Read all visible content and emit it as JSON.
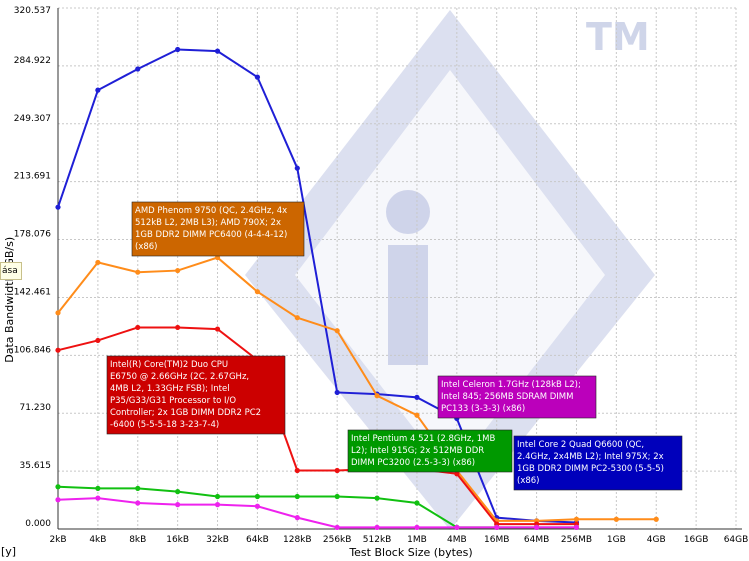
{
  "chart_data": {
    "type": "line",
    "xlabel": "Test Block Size (bytes)",
    "ylabel": "Data Bandwidth (GB/s)",
    "y_unit_marker": "[y]",
    "clipped_label": "ása",
    "watermark": "TM",
    "ylim": [
      0,
      320.537
    ],
    "yticks": [
      "0.000",
      "35.615",
      "71.230",
      "106.846",
      "142.461",
      "178.076",
      "213.691",
      "249.307",
      "284.922",
      "320.537"
    ],
    "categories": [
      "2kB",
      "4kB",
      "8kB",
      "16kB",
      "32kB",
      "64kB",
      "128kB",
      "256kB",
      "512kB",
      "1MB",
      "4MB",
      "16MB",
      "64MB",
      "256MB",
      "1GB",
      "4GB",
      "16GB",
      "64GB"
    ],
    "series": [
      {
        "name": "Intel Core 2 Quad Q6600 (QC, 2.4GHz, 2x4MB L2); Intel 975X; 2x 1GB DDR2 DIMM PC2-5300 (5-5-5) (x86)",
        "color": "#1f1fd6",
        "values": [
          198,
          270,
          283,
          295,
          294,
          278,
          222,
          84,
          83,
          81,
          68,
          7,
          5,
          4,
          null,
          null,
          null,
          null
        ]
      },
      {
        "name": "AMD Phenom 9750 (QC, 2.4GHz, 4x 512kB L2, 2MB L3); AMD 790X; 2x 1GB DDR2 DIMM PC6400 (4-4-4-12) (x86)",
        "color": "#ff8c1a",
        "values": [
          133,
          164,
          158,
          159,
          167,
          146,
          130,
          122,
          82,
          70,
          36,
          5,
          5,
          6,
          6,
          6,
          null,
          null
        ]
      },
      {
        "name": "Intel(R) Core(TM)2 Duo CPU E6750 @ 2.66GHz (2C, 2.67GHz, 4MB L2, 1.33GHz FSB); Intel P35/G33/G31 Processor to I/O Controller; 2x 1GB DIMM DDR2 PC2-6400 (5-5-5-18 3-23-7-4)",
        "color": "#ee1111",
        "values": [
          110,
          116,
          124,
          124,
          123,
          104,
          36,
          36,
          37,
          37,
          34,
          3,
          3,
          3,
          null,
          null,
          null,
          null
        ]
      },
      {
        "name": "Intel Pentium 4 521 (2.8GHz, 1MB L2); Intel 915G; 2x 512MB DDR DIMM PC3200 (2.5-3-3) (x86)",
        "color": "#11c011",
        "values": [
          26,
          25,
          25,
          23,
          20,
          20,
          20,
          20,
          19,
          16,
          1,
          1,
          1,
          1,
          null,
          null,
          null,
          null
        ]
      },
      {
        "name": "Intel Celeron 1.7GHz (128kB L2); Intel 845; 256MB SDRAM DIMM PC133 (3-3-3) (x86)",
        "color": "#ee22ee",
        "values": [
          18,
          19,
          16,
          15,
          15,
          14,
          7,
          1,
          1,
          1,
          1,
          1,
          1,
          1,
          null,
          null,
          null,
          null
        ]
      }
    ],
    "annotations": [
      {
        "series": 1,
        "fill": "#cc6600",
        "lines": [
          "AMD Phenom 9750 (QC, 2.4GHz, 4x",
          "512kB L2, 2MB L3); AMD 790X; 2x",
          "1GB DDR2 DIMM PC6400 (4-4-4-12)",
          "(x86)"
        ]
      },
      {
        "series": 2,
        "fill": "#cc0000",
        "lines": [
          "Intel(R) Core(TM)2 Duo CPU",
          "E6750  @ 2.66GHz (2C, 2.67GHz,",
          "4MB L2, 1.33GHz FSB); Intel",
          "P35/G33/G31 Processor to I/O",
          "Controller; 2x 1GB DIMM DDR2 PC2",
          "-6400 (5-5-5-18 3-23-7-4)"
        ]
      },
      {
        "series": 4,
        "fill": "#bb00bb",
        "lines": [
          "Intel Celeron 1.7GHz (128kB L2);",
          "Intel 845; 256MB SDRAM DIMM",
          "PC133 (3-3-3) (x86)"
        ]
      },
      {
        "series": 3,
        "fill": "#009900",
        "lines": [
          "Intel Pentium 4 521 (2.8GHz, 1MB",
          "L2); Intel 915G; 2x 512MB DDR",
          "DIMM PC3200 (2.5-3-3) (x86)"
        ]
      },
      {
        "series": 0,
        "fill": "#0000bb",
        "lines": [
          "Intel Core 2 Quad Q6600 (QC,",
          "2.4GHz, 2x4MB L2); Intel 975X; 2x",
          "1GB DDR2 DIMM PC2-5300 (5-5-5)",
          "(x86)"
        ]
      }
    ]
  }
}
